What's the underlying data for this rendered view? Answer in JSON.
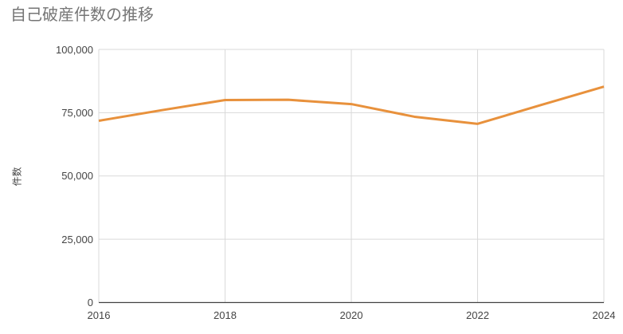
{
  "chart_data": {
    "type": "line",
    "title": "自己破産件数の推移",
    "xlabel": "",
    "ylabel": "件数",
    "x": [
      2016,
      2017,
      2018,
      2019,
      2020,
      2021,
      2022,
      2023,
      2024
    ],
    "series": [
      {
        "name": "件数",
        "values": [
          71800,
          76000,
          80000,
          80100,
          78400,
          73400,
          70600,
          78000,
          85300
        ],
        "color": "#E8913C"
      }
    ],
    "xlim": [
      2016,
      2024
    ],
    "ylim": [
      0,
      100000
    ],
    "grid": true,
    "legend": "none",
    "y_ticks": [
      {
        "value": 0,
        "label": "0"
      },
      {
        "value": 25000,
        "label": "25,000"
      },
      {
        "value": 50000,
        "label": "50,000"
      },
      {
        "value": 75000,
        "label": "75,000"
      },
      {
        "value": 100000,
        "label": "100,000"
      }
    ],
    "x_ticks": [
      {
        "value": 2016,
        "label": "2016"
      },
      {
        "value": 2018,
        "label": "2018"
      },
      {
        "value": 2020,
        "label": "2020"
      },
      {
        "value": 2022,
        "label": "2022"
      },
      {
        "value": 2024,
        "label": "2024"
      }
    ],
    "colors": {
      "title_text": "#757575",
      "tick_text": "#444444",
      "gridline": "#D9D9D9",
      "axis_line": "#424242",
      "background": "#FFFFFF"
    }
  }
}
